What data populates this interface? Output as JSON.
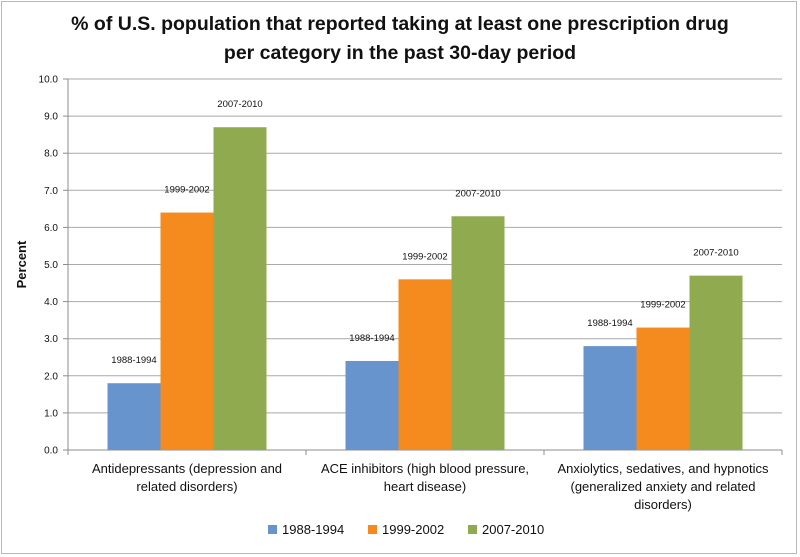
{
  "chart_data": {
    "type": "bar",
    "title": "% of U.S. population that reported taking at least one prescription drug per category in the past 30-day period",
    "ylabel": "Percent",
    "xlabel": "",
    "ylim": [
      0,
      10
    ],
    "ytick_step": 1,
    "ytick_labels": [
      "0.0",
      "1.0",
      "2.0",
      "3.0",
      "4.0",
      "5.0",
      "6.0",
      "7.0",
      "8.0",
      "9.0",
      "10.0"
    ],
    "grid": true,
    "legend_position": "bottom",
    "categories": [
      [
        "Antidepressants (depression and",
        "related disorders)"
      ],
      [
        "ACE inhibitors (high blood pressure,",
        "heart disease)"
      ],
      [
        "Anxiolytics, sedatives, and hypnotics",
        "(generalized  anxiety and related",
        "disorders)"
      ]
    ],
    "series": [
      {
        "name": "1988-1994",
        "color": "#6794cc",
        "values": [
          1.8,
          2.4,
          2.8
        ]
      },
      {
        "name": "1999-2002",
        "color": "#f58a1f",
        "values": [
          6.4,
          4.6,
          3.3
        ]
      },
      {
        "name": "2007-2010",
        "color": "#8faa4f",
        "values": [
          8.7,
          6.3,
          4.7
        ]
      }
    ]
  }
}
